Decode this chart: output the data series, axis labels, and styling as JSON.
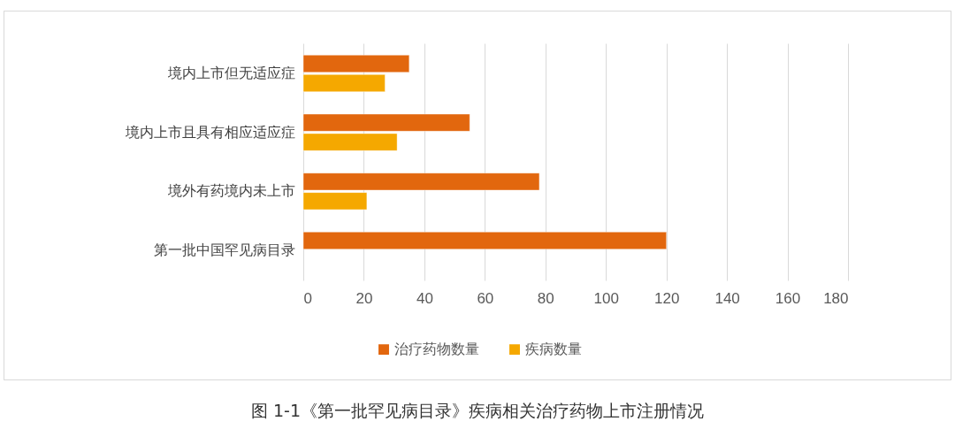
{
  "chart_data": {
    "type": "bar",
    "orientation": "horizontal",
    "categories": [
      "境内上市但无适应症",
      "境内上市且具有相应适应症",
      "境外有药境内未上市",
      "第一批中国罕见病目录"
    ],
    "series": [
      {
        "name": "治疗药物数量",
        "color": "#e2670e",
        "values": [
          35,
          55,
          78,
          120
        ]
      },
      {
        "name": "疾病数量",
        "color": "#f5a800",
        "values": [
          27,
          31,
          21,
          null
        ]
      }
    ],
    "xlim": [
      0,
      180
    ],
    "xticks": [
      0,
      20,
      40,
      60,
      80,
      100,
      120,
      140,
      160,
      180
    ],
    "grid": "x",
    "legend": "bottom",
    "annotations": [
      "图 1-1《第一批罕见病目录》疾病相关治疗药物上市注册情况"
    ]
  }
}
